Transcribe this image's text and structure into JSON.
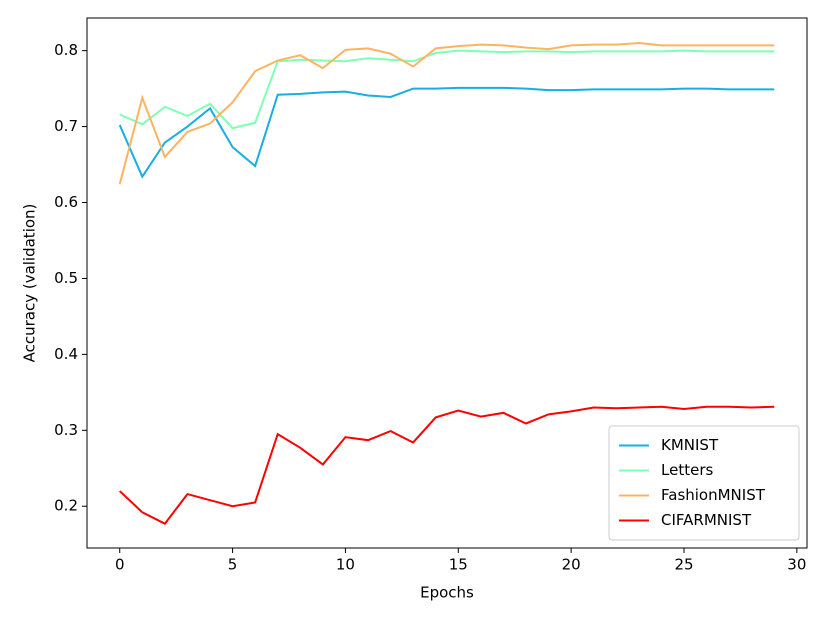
{
  "chart_data": {
    "type": "line",
    "xlabel": "Epochs",
    "ylabel": "Accuracy (validation)",
    "x": [
      0,
      1,
      2,
      3,
      4,
      5,
      6,
      7,
      8,
      9,
      10,
      11,
      12,
      13,
      14,
      15,
      16,
      17,
      18,
      19,
      20,
      21,
      22,
      23,
      24,
      25,
      26,
      27,
      28,
      29
    ],
    "series": [
      {
        "name": "KMNIST",
        "color": "#17aee3",
        "values": [
          0.702,
          0.634,
          0.679,
          0.7,
          0.724,
          0.673,
          0.648,
          0.742,
          0.743,
          0.745,
          0.746,
          0.741,
          0.739,
          0.75,
          0.75,
          0.751,
          0.751,
          0.751,
          0.75,
          0.748,
          0.748,
          0.749,
          0.749,
          0.749,
          0.749,
          0.75,
          0.75,
          0.749,
          0.749,
          0.749
        ]
      },
      {
        "name": "Letters",
        "color": "#80ffb4",
        "values": [
          0.716,
          0.703,
          0.726,
          0.714,
          0.73,
          0.698,
          0.705,
          0.786,
          0.788,
          0.787,
          0.786,
          0.79,
          0.788,
          0.786,
          0.797,
          0.8,
          0.799,
          0.798,
          0.799,
          0.799,
          0.798,
          0.799,
          0.799,
          0.799,
          0.799,
          0.8,
          0.799,
          0.799,
          0.799,
          0.799
        ]
      },
      {
        "name": "FashionMNIST",
        "color": "#ffb360",
        "values": [
          0.624,
          0.738,
          0.66,
          0.693,
          0.704,
          0.732,
          0.773,
          0.787,
          0.794,
          0.777,
          0.801,
          0.803,
          0.796,
          0.779,
          0.803,
          0.806,
          0.808,
          0.807,
          0.804,
          0.802,
          0.807,
          0.808,
          0.808,
          0.81,
          0.807,
          0.807,
          0.807,
          0.807,
          0.807,
          0.807
        ]
      },
      {
        "name": "CIFARMNIST",
        "color": "#ff0000",
        "values": [
          0.22,
          0.192,
          0.177,
          0.216,
          0.208,
          0.2,
          0.205,
          0.295,
          0.277,
          0.255,
          0.291,
          0.287,
          0.299,
          0.284,
          0.317,
          0.326,
          0.318,
          0.323,
          0.309,
          0.321,
          0.325,
          0.33,
          0.329,
          0.33,
          0.331,
          0.328,
          0.331,
          0.331,
          0.33,
          0.331
        ]
      }
    ],
    "xlim": [
      -1.45,
      30.45
    ],
    "xticks": [
      0,
      5,
      10,
      15,
      20,
      25,
      30
    ],
    "ylim": [
      0.145,
      0.843
    ],
    "yticks": [
      0.2,
      0.3,
      0.4,
      0.5,
      0.6,
      0.7,
      0.8
    ],
    "legend": "lower right"
  }
}
